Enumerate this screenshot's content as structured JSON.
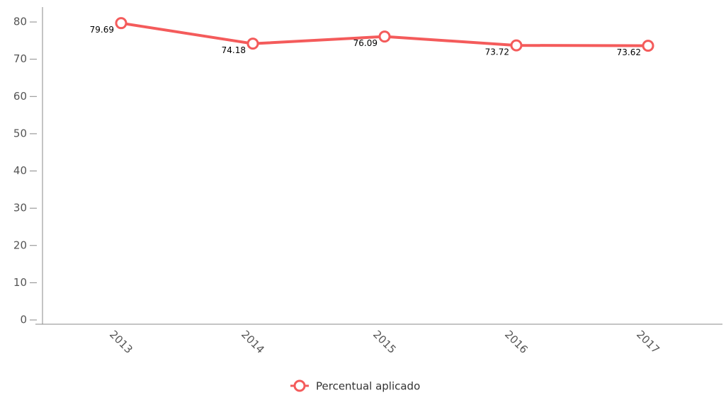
{
  "chart_data": {
    "type": "line",
    "categories": [
      "2013",
      "2014",
      "2015",
      "2016",
      "2017"
    ],
    "series": [
      {
        "name": "Percentual aplicado",
        "color": "#f45b5b",
        "values": [
          79.69,
          74.18,
          76.09,
          73.72,
          73.62
        ]
      }
    ],
    "ylim": [
      0,
      84
    ],
    "yticks": [
      0,
      10,
      20,
      30,
      40,
      50,
      60,
      70,
      80
    ],
    "grid": false,
    "legend": "bottom"
  }
}
